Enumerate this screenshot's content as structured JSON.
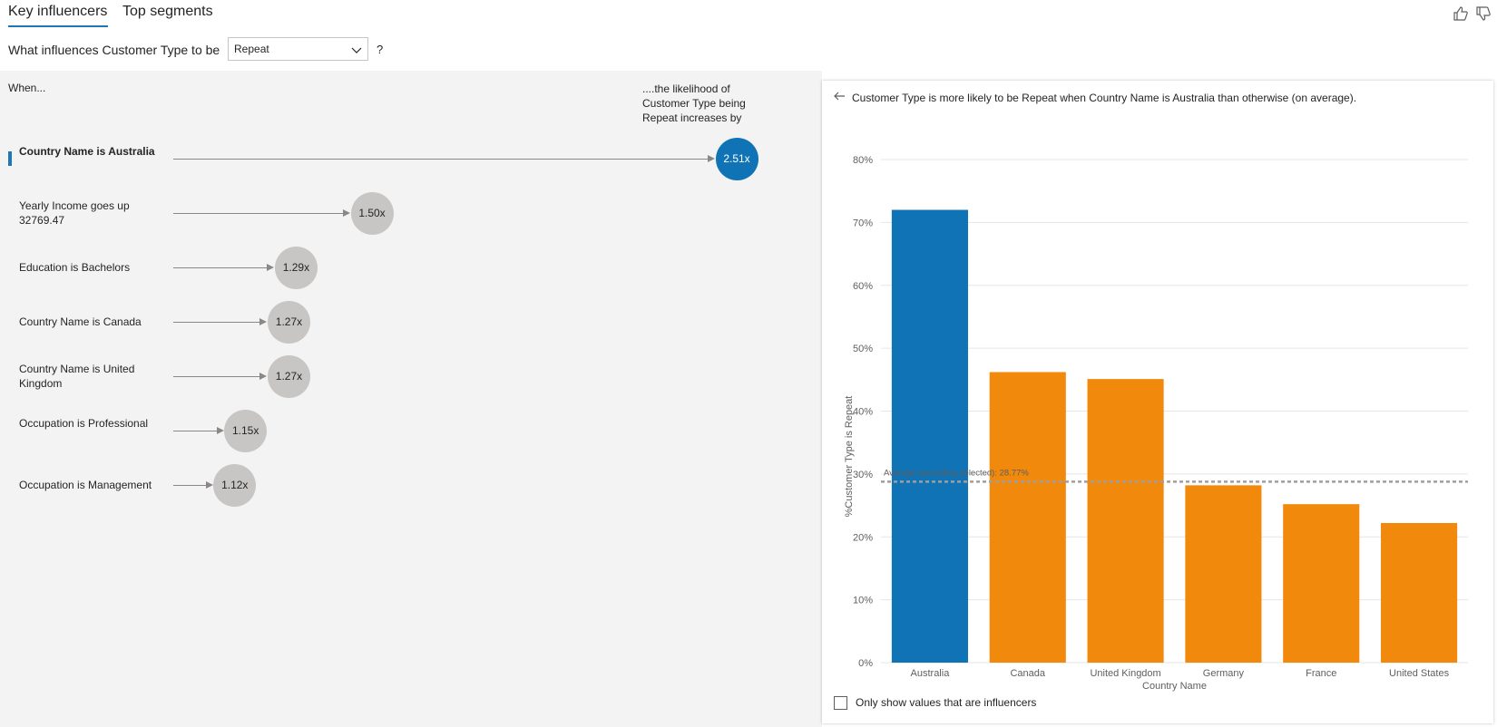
{
  "header": {
    "tabs": [
      {
        "label": "Key influencers",
        "active": true
      },
      {
        "label": "Top segments",
        "active": false
      }
    ],
    "feedback_icons": [
      "thumbs-up-icon",
      "thumbs-down-icon"
    ]
  },
  "question": {
    "text": "What influences Customer Type to be",
    "dropdown_value": "Repeat",
    "help": "?"
  },
  "left": {
    "when_label": "When...",
    "likelihood_label": "....the likelihood of Customer Type being Repeat increases by",
    "influencers": [
      {
        "label": "Country Name is Australia",
        "value": 2.51,
        "display": "2.51x",
        "selected": true
      },
      {
        "label": "Yearly Income goes up 32769.47",
        "value": 1.5,
        "display": "1.50x",
        "selected": false
      },
      {
        "label": "Education is Bachelors",
        "value": 1.29,
        "display": "1.29x",
        "selected": false
      },
      {
        "label": "Country Name is Canada",
        "value": 1.27,
        "display": "1.27x",
        "selected": false
      },
      {
        "label": "Country Name is United Kingdom",
        "value": 1.27,
        "display": "1.27x",
        "selected": false
      },
      {
        "label": "Occupation is Professional",
        "value": 1.15,
        "display": "1.15x",
        "selected": false
      },
      {
        "label": "Occupation is Management",
        "value": 1.12,
        "display": "1.12x",
        "selected": false
      }
    ]
  },
  "right": {
    "detail_text": "Customer Type is more likely to be Repeat when Country Name is Australia than otherwise (on average).",
    "checkbox_label": "Only show values that are influencers",
    "checkbox_checked": false
  },
  "chart_data": {
    "type": "bar",
    "categories": [
      "Australia",
      "Canada",
      "United Kingdom",
      "Germany",
      "France",
      "United States"
    ],
    "values": [
      72,
      46.2,
      45.1,
      28.2,
      25.2,
      22.2
    ],
    "bar_colors": [
      "#0f73b5",
      "#f0890c",
      "#f0890c",
      "#f0890c",
      "#f0890c",
      "#f0890c"
    ],
    "xlabel": "Country Name",
    "ylabel": "%Customer Type is Repeat",
    "ylim": [
      0,
      80
    ],
    "yticks": [
      0,
      10,
      20,
      30,
      40,
      50,
      60,
      70,
      80
    ],
    "ytick_labels": [
      "0%",
      "10%",
      "20%",
      "30%",
      "40%",
      "50%",
      "60%",
      "70%",
      "80%"
    ],
    "reference_line": {
      "value": 28.77,
      "label": "Average (excluding selected): 28.77%"
    },
    "grid": true
  },
  "colors": {
    "accent": "#1f78b4",
    "selected_bubble": "#0f73b5",
    "bubble": "#c8c6c4",
    "bar_other": "#f0890c"
  }
}
